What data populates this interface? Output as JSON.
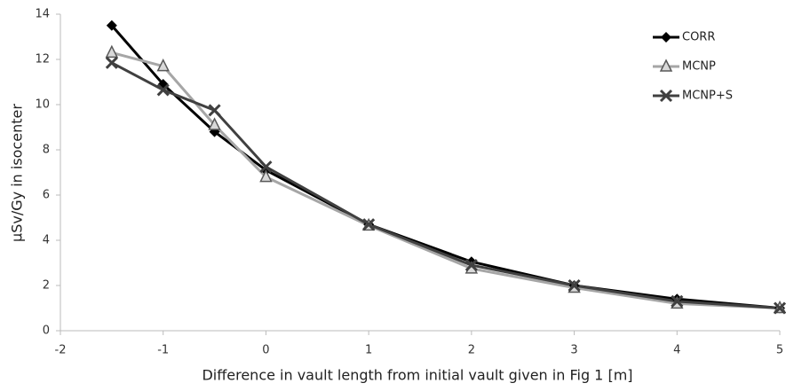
{
  "chart_data": {
    "type": "line",
    "x_label": "Difference in vault length from initial vault given in Fig 1 [m]",
    "y_label": "μSv/Gy in isocenter",
    "x": [
      -1.5,
      -1,
      -0.5,
      0,
      1,
      2,
      3,
      4,
      5
    ],
    "series": [
      {
        "name": "CORR",
        "color": "#000000",
        "marker": "diamond",
        "values": [
          13.5,
          10.9,
          8.8,
          7.1,
          4.7,
          3.05,
          2.0,
          1.4,
          1.0
        ]
      },
      {
        "name": "MCNP",
        "color": "#a6a6a6",
        "marker": "triangle",
        "values": [
          12.3,
          11.7,
          9.1,
          6.8,
          4.65,
          2.75,
          1.9,
          1.2,
          1.0
        ]
      },
      {
        "name": "MCNP+S",
        "color": "#404040",
        "marker": "x",
        "values": [
          11.85,
          10.65,
          9.75,
          7.25,
          4.7,
          2.9,
          2.0,
          1.3,
          1.0
        ]
      }
    ],
    "xlim": [
      -2,
      5
    ],
    "xticks": [
      -2,
      -1,
      0,
      1,
      2,
      3,
      4,
      5
    ],
    "ylim": [
      0,
      14
    ],
    "yticks": [
      0,
      2,
      4,
      6,
      8,
      10,
      12,
      14
    ],
    "grid": false,
    "legend": "upper right"
  }
}
